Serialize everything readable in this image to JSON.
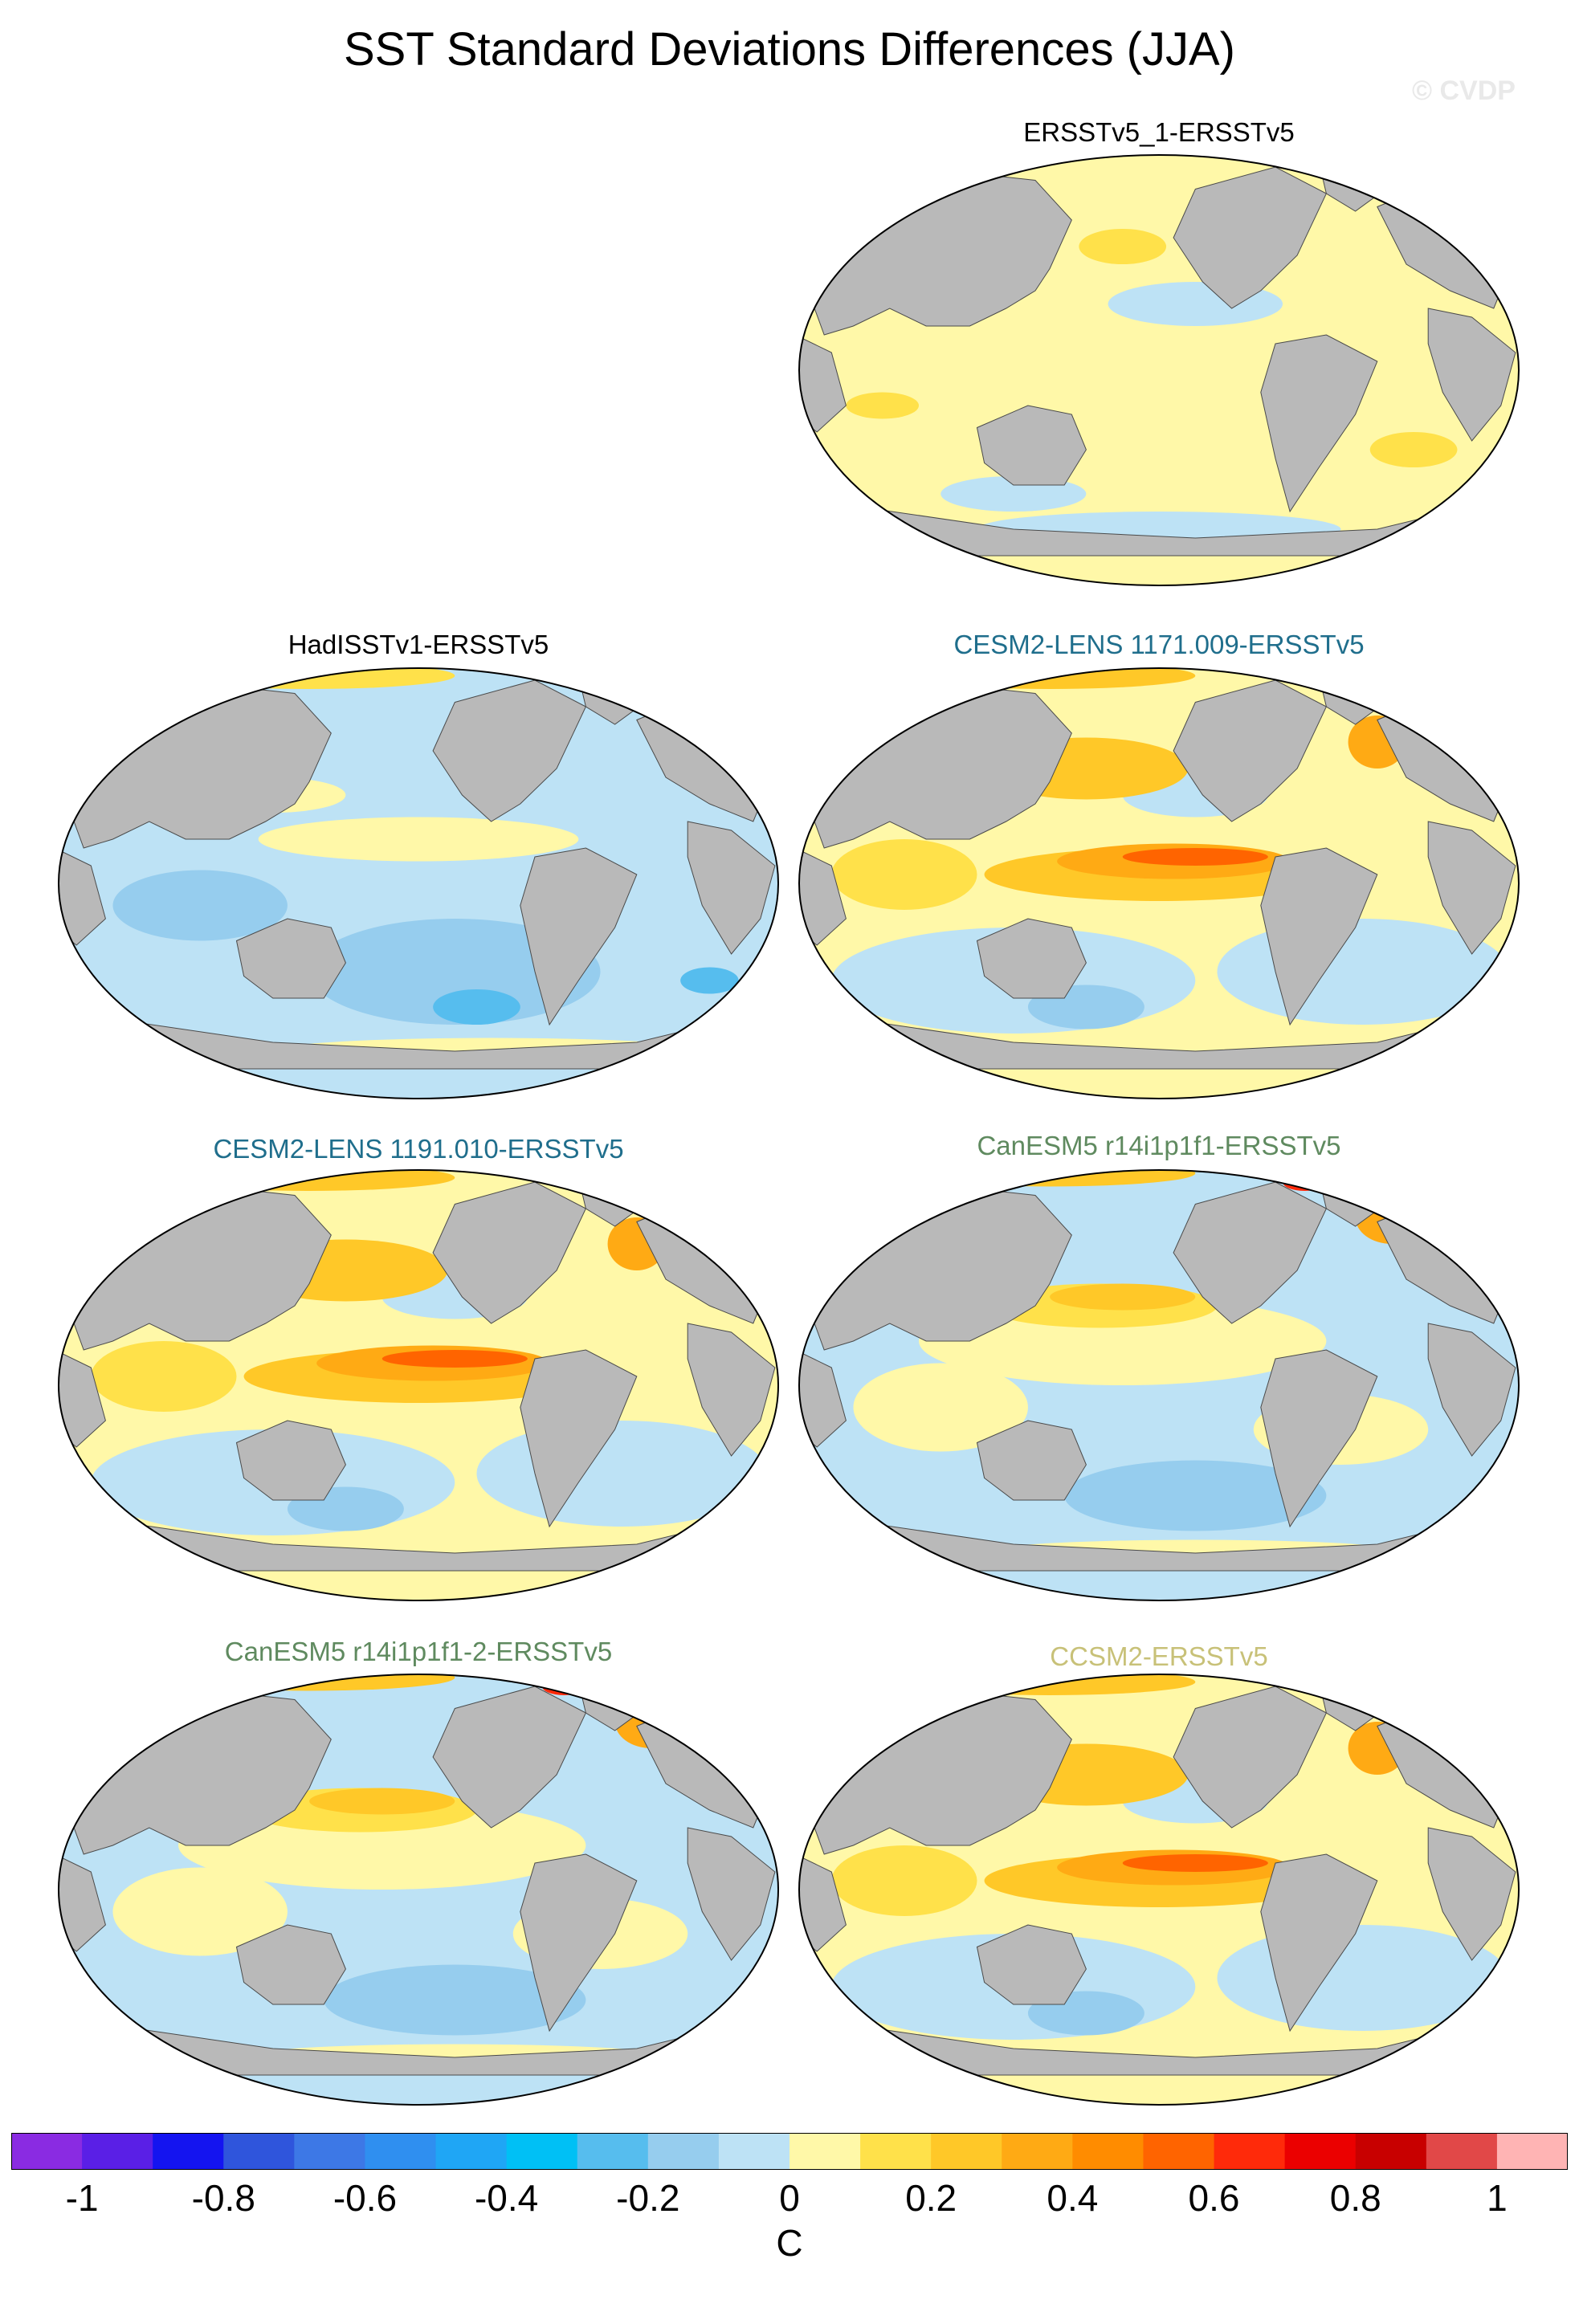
{
  "title": "SST Standard Deviations Differences (JJA)",
  "watermark": "© CVDP",
  "colors": {
    "land": "#b9b9b9",
    "coast": "#4a4a4a",
    "title_black": "#000000",
    "title_cesm": "#1f6e8c",
    "title_canesm": "#5f8a5f",
    "title_ccsm": "#c8c178"
  },
  "panels": [
    {
      "title": "ERSSTv5_1-ERSSTv5",
      "title_color": "#000000",
      "pattern": "yellow"
    },
    {
      "title": "HadISSTv1-ERSSTv5",
      "title_color": "#000000",
      "pattern": "blue"
    },
    {
      "title": "CESM2-LENS 1171.009-ERSSTv5",
      "title_color": "#1f6e8c",
      "pattern": "enso"
    },
    {
      "title": "CESM2-LENS 1191.010-ERSSTv5",
      "title_color": "#1f6e8c",
      "pattern": "enso"
    },
    {
      "title": "CanESM5 r14i1p1f1-ERSSTv5",
      "title_color": "#5f8a5f",
      "pattern": "mixed"
    },
    {
      "title": "CanESM5 r14i1p1f1-2-ERSSTv5",
      "title_color": "#5f8a5f",
      "pattern": "mixed"
    },
    {
      "title": "CCSM2-ERSSTv5",
      "title_color": "#c8c178",
      "pattern": "enso"
    }
  ],
  "colorbar": {
    "colors": [
      "#8a2be2",
      "#5a1fe6",
      "#1414f0",
      "#2f55dc",
      "#3d78e6",
      "#2f8ff0",
      "#1fa6f5",
      "#00c0f5",
      "#56bdee",
      "#96cdee",
      "#bde2f5",
      "#fff8a8",
      "#ffe14a",
      "#ffc828",
      "#ffaa14",
      "#ff8c00",
      "#ff6400",
      "#ff2a0a",
      "#eb0000",
      "#c80000",
      "#e14848",
      "#ffb4b4"
    ],
    "ticks": [
      "-1",
      "-0.8",
      "-0.6",
      "-0.4",
      "-0.2",
      "0",
      "0.2",
      "0.4",
      "0.6",
      "0.8",
      "1"
    ],
    "unit": "C"
  }
}
